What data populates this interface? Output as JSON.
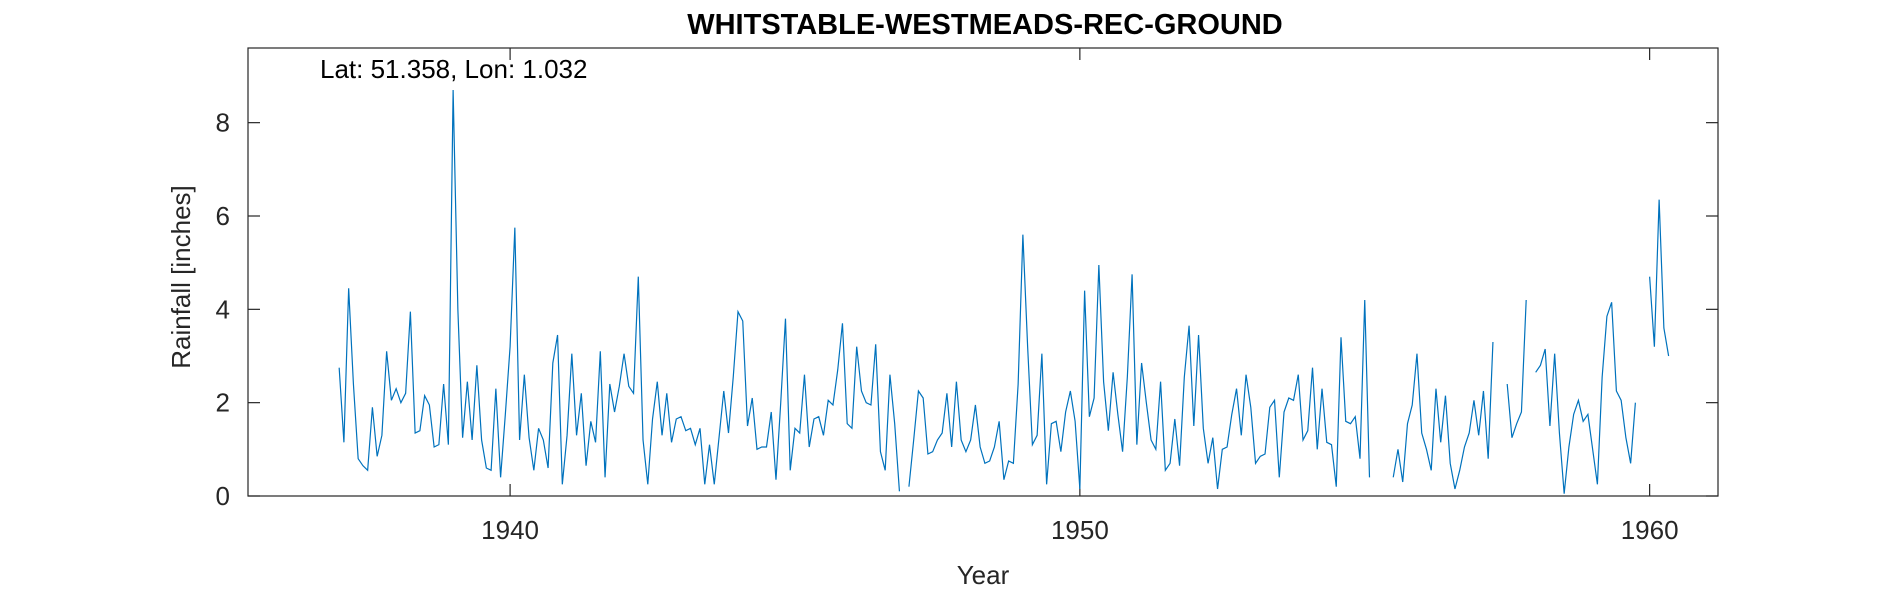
{
  "chart_data": {
    "type": "line",
    "title": "WHITSTABLE-WESTMEADS-REC-GROUND",
    "xlabel": "Year",
    "ylabel": "Rainfall [inches]",
    "annotation": "Lat: 51.358, Lon: 1.032",
    "xlim": [
      1935.4,
      1961.2
    ],
    "ylim": [
      0,
      9.6
    ],
    "xticks": [
      1940,
      1950,
      1960
    ],
    "xtick_labels": [
      "1940",
      "1950",
      "1960"
    ],
    "yticks": [
      0,
      2,
      4,
      6,
      8
    ],
    "ytick_labels": [
      "0",
      "2",
      "4",
      "6",
      "8"
    ],
    "grid": false,
    "colors": {
      "line": "#0072BD",
      "axes": "#262626"
    },
    "series": [
      {
        "start_year": 1937,
        "start_month": 1,
        "values": [
          2.75,
          1.15,
          4.45,
          2.4,
          0.8,
          0.65,
          0.55,
          1.9,
          0.85,
          1.3,
          3.1,
          2.05,
          2.3,
          2.0,
          2.2,
          3.95,
          1.35,
          1.4,
          2.15,
          1.95,
          1.05,
          1.1,
          2.4,
          1.1,
          8.7,
          4.0,
          1.25,
          2.45,
          1.2,
          2.8,
          1.2,
          0.6,
          0.55,
          2.3,
          0.4,
          1.75,
          3.2,
          5.75,
          1.2,
          2.6,
          1.25,
          0.55,
          1.45,
          1.2,
          0.6,
          2.85,
          3.45,
          0.25,
          1.3,
          3.05,
          1.3,
          2.2,
          0.65,
          1.6,
          1.15,
          3.1,
          0.4,
          2.4,
          1.8,
          2.35,
          3.05,
          2.35,
          2.2,
          4.7,
          1.2,
          0.25,
          1.65,
          2.45,
          1.3,
          2.2,
          1.15,
          1.65,
          1.7,
          1.4,
          1.45,
          1.1,
          1.45,
          0.25,
          1.1,
          0.25,
          1.25,
          2.25,
          1.35,
          2.55,
          3.95,
          3.75,
          1.5,
          2.1,
          1.0,
          1.05,
          1.05,
          1.8,
          0.35,
          2.0,
          3.8,
          0.55,
          1.45,
          1.35,
          2.6,
          1.05,
          1.65,
          1.7,
          1.3,
          2.05,
          1.95,
          2.7,
          3.7,
          1.55,
          1.45,
          3.2,
          2.25,
          2.0,
          1.95,
          3.25,
          0.95,
          0.55,
          2.6,
          1.55,
          0.1,
          null,
          0.2,
          1.2,
          2.25,
          2.1,
          0.9,
          0.95,
          1.2,
          1.35,
          2.2,
          1.05,
          2.45,
          1.2,
          0.95,
          1.2,
          1.95,
          1.05,
          0.7,
          0.75,
          1.05,
          1.6,
          0.35,
          0.75,
          0.7,
          2.4,
          5.6,
          3.2,
          1.1,
          1.3,
          3.05,
          0.25,
          1.55,
          1.6,
          0.95,
          1.8,
          2.25,
          1.6,
          0.15,
          4.4,
          1.7,
          2.1,
          4.95,
          2.45,
          1.4,
          2.65,
          1.75,
          0.95,
          2.55,
          4.75,
          1.1,
          2.85,
          2.0,
          1.2,
          1.0,
          2.45,
          0.55,
          0.7,
          1.65,
          0.65,
          2.55,
          3.65,
          1.5,
          3.45,
          1.45,
          0.7,
          1.25,
          0.15,
          1.0,
          1.05,
          1.75,
          2.3,
          1.3,
          2.6,
          1.9,
          0.7,
          0.85,
          0.9,
          1.9,
          2.05,
          0.4,
          1.8,
          2.1,
          2.05,
          2.6,
          1.2,
          1.4,
          2.75,
          1.0,
          2.3,
          1.15,
          1.1,
          0.2,
          3.4,
          1.6,
          1.55,
          1.7,
          0.8,
          4.2,
          0.4,
          null,
          null,
          null,
          null,
          0.4,
          1.0,
          0.3,
          1.55,
          1.95,
          3.05,
          1.35,
          1.0,
          0.55,
          2.3,
          1.15,
          2.15,
          0.7,
          0.15,
          0.55,
          1.05,
          1.35,
          2.05,
          1.3,
          2.25,
          0.8,
          3.3,
          null,
          null,
          2.4,
          1.25,
          1.55,
          1.8,
          4.2,
          null,
          2.65,
          2.8,
          3.15,
          1.5,
          3.05,
          1.35,
          0.05,
          1.05,
          1.75,
          2.05,
          1.6,
          1.75,
          1.0,
          0.25,
          2.55,
          3.85,
          4.15,
          2.25,
          2.05,
          1.25,
          0.7,
          2.0,
          null,
          null,
          4.7,
          3.2,
          6.35,
          3.6,
          3.0
        ]
      }
    ]
  }
}
